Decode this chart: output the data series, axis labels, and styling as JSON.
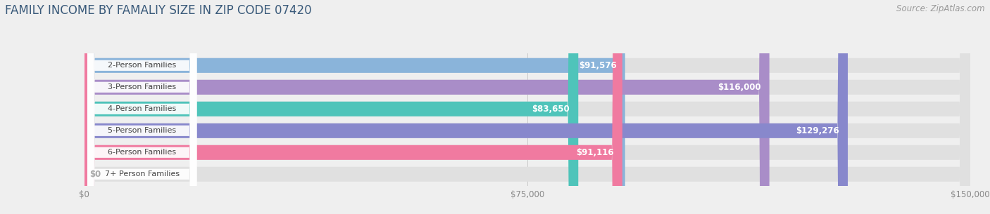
{
  "title": "FAMILY INCOME BY FAMALIY SIZE IN ZIP CODE 07420",
  "source": "Source: ZipAtlas.com",
  "categories": [
    "2-Person Families",
    "3-Person Families",
    "4-Person Families",
    "5-Person Families",
    "6-Person Families",
    "7+ Person Families"
  ],
  "values": [
    91576,
    116000,
    83650,
    129276,
    91116,
    0
  ],
  "bar_colors": [
    "#8ab4da",
    "#a98dc8",
    "#4fc4ba",
    "#8888cc",
    "#f07aA0",
    "#f5c898"
  ],
  "value_labels": [
    "$91,576",
    "$116,000",
    "$83,650",
    "$129,276",
    "$91,116",
    "$0"
  ],
  "xlim_max": 150000,
  "xticks": [
    0,
    75000,
    150000
  ],
  "xticklabels": [
    "$0",
    "$75,000",
    "$150,000"
  ],
  "background_color": "#efefef",
  "bar_bg_color": "#e0e0e0",
  "title_color": "#3a5a7a",
  "source_color": "#999999",
  "label_color_inside": "#ffffff",
  "label_color_outside": "#aaaaaa",
  "title_fontsize": 12,
  "source_fontsize": 8.5,
  "tick_fontsize": 8.5,
  "bar_label_fontsize": 8.5,
  "category_fontsize": 8
}
